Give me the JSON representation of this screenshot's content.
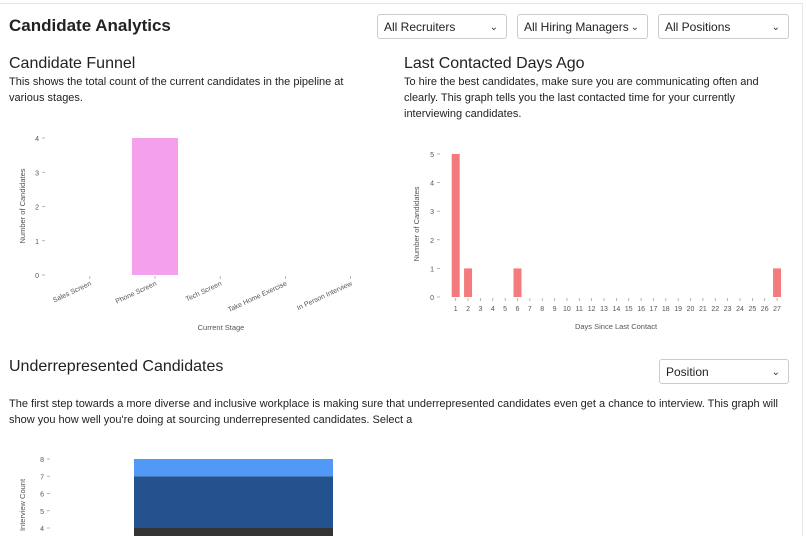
{
  "header": {
    "title": "Candidate Analytics"
  },
  "filters": {
    "recruiters": "All Recruiters",
    "hiring_managers": "All Hiring Managers",
    "positions": "All Positions"
  },
  "funnel": {
    "title": "Candidate Funnel",
    "description": "This shows the total count of the current candidates in the pipeline at various stages."
  },
  "contacted": {
    "title": "Last Contacted Days Ago",
    "description": "To hire the best candidates, make sure you are communicating often and clearly. This graph tells you the last contacted time for your currently interviewing candidates."
  },
  "underrep": {
    "title": "Underrepresented Candidates",
    "select": "Position",
    "description": "The first step towards a more diverse and inclusive workplace is making sure that underrepresented candidates even get a chance to interview. This graph will show you how well you're doing at sourcing underrepresented candidates. Select a"
  },
  "chart_data": [
    {
      "type": "bar",
      "title": "Candidate Funnel",
      "xlabel": "Current Stage",
      "ylabel": "Number of Candidates",
      "categories": [
        "Sales Screen",
        "Phone Screen",
        "Tech Screen",
        "Take Home Exercise",
        "In Person Interview"
      ],
      "values": [
        0,
        4,
        0,
        0,
        0
      ],
      "ylim": [
        0,
        4
      ],
      "yticks": [
        0,
        1,
        2,
        3,
        4
      ],
      "color": "#f4a0ec"
    },
    {
      "type": "bar",
      "title": "Last Contacted Days Ago",
      "xlabel": "Days Since Last Contact",
      "ylabel": "Number of Candidates",
      "categories": [
        "1",
        "2",
        "3",
        "4",
        "5",
        "6",
        "7",
        "8",
        "9",
        "10",
        "11",
        "12",
        "13",
        "14",
        "15",
        "16",
        "17",
        "18",
        "19",
        "20",
        "21",
        "22",
        "23",
        "24",
        "25",
        "26",
        "27"
      ],
      "values": [
        5,
        1,
        0,
        0,
        0,
        1,
        0,
        0,
        0,
        0,
        0,
        0,
        0,
        0,
        0,
        0,
        0,
        0,
        0,
        0,
        0,
        0,
        0,
        0,
        0,
        0,
        1
      ],
      "ylim": [
        0,
        5
      ],
      "yticks": [
        0,
        1,
        2,
        3,
        4,
        5
      ],
      "color": "#f47a7e"
    },
    {
      "type": "bar",
      "stacked": true,
      "title": "Underrepresented Candidates",
      "ylabel": "Interview Count",
      "yticks": [
        4,
        5,
        6,
        7,
        8
      ],
      "ylim": [
        0,
        8
      ],
      "segments": [
        {
          "value": 4,
          "color": "#333333"
        },
        {
          "value": 3,
          "color": "#24528f"
        },
        {
          "value": 1,
          "color": "#5199f6"
        }
      ]
    }
  ]
}
